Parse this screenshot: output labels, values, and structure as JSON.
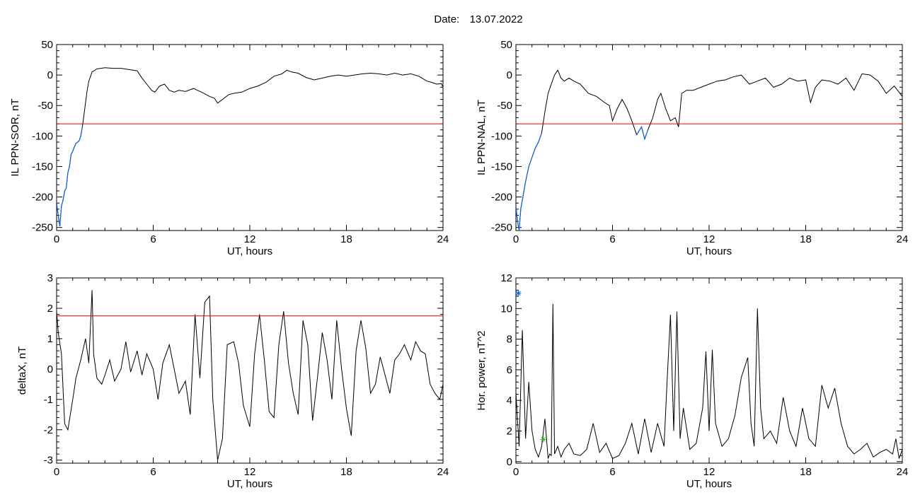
{
  "header": {
    "date_label": "Date:",
    "date_value": "13.07.2022"
  },
  "chart_data": [
    {
      "type": "line",
      "ylabel": "IL PPN-SOR, nT",
      "xlabel": "UT, hours",
      "xlim": [
        0,
        24
      ],
      "ylim": [
        -255,
        50
      ],
      "xticks": [
        0,
        6,
        12,
        18,
        24
      ],
      "yticks": [
        50,
        0,
        -50,
        -100,
        -150,
        -200,
        -250
      ],
      "threshold": {
        "value": -80,
        "color": "#e00000"
      },
      "below_color": "#1060e0",
      "series": [
        {
          "x": [
            0,
            0.1,
            0.2,
            0.3,
            0.4,
            0.5,
            0.6,
            0.7,
            0.8,
            0.9,
            1.0,
            1.1,
            1.2,
            1.3,
            1.4,
            1.5,
            1.6,
            1.7,
            1.8,
            1.9,
            2.0,
            2.2,
            2.5,
            3.0,
            3.5,
            4.0,
            4.5,
            5.0,
            5.3,
            5.6,
            5.9,
            6.1,
            6.4,
            6.7,
            7.0,
            7.3,
            7.6,
            8.0,
            8.5,
            9.0,
            9.5,
            9.8,
            10.0,
            10.3,
            10.7,
            11.0,
            11.5,
            12.0,
            12.5,
            13.0,
            13.5,
            14.0,
            14.3,
            14.6,
            15.0,
            15.5,
            16.0,
            16.5,
            17.0,
            17.5,
            18.0,
            18.5,
            19.0,
            19.5,
            20.0,
            20.5,
            21.0,
            21.5,
            22.0,
            22.5,
            23.0,
            23.3,
            23.6,
            23.9,
            24.0
          ],
          "y": [
            -210,
            -230,
            -248,
            -215,
            -205,
            -190,
            -185,
            -160,
            -150,
            -130,
            -125,
            -118,
            -112,
            -110,
            -108,
            -100,
            -85,
            -65,
            -45,
            -25,
            -10,
            5,
            10,
            12,
            11,
            11,
            9,
            7,
            -5,
            -15,
            -25,
            -28,
            -18,
            -15,
            -25,
            -28,
            -25,
            -27,
            -22,
            -28,
            -35,
            -38,
            -46,
            -40,
            -32,
            -30,
            -28,
            -22,
            -18,
            -12,
            -2,
            2,
            8,
            5,
            3,
            -4,
            -8,
            -5,
            -2,
            0,
            -2,
            0,
            2,
            3,
            2,
            0,
            3,
            0,
            2,
            -2,
            -10,
            -12,
            -15,
            -14,
            -20
          ]
        }
      ]
    },
    {
      "type": "line",
      "ylabel": "IL PPN-NAL, nT",
      "xlabel": "UT, hours",
      "xlim": [
        0,
        24
      ],
      "ylim": [
        -255,
        50
      ],
      "xticks": [
        0,
        6,
        12,
        18,
        24
      ],
      "yticks": [
        50,
        0,
        -50,
        -100,
        -150,
        -200,
        -250
      ],
      "threshold": {
        "value": -80,
        "color": "#e00000"
      },
      "below_color": "#1060e0",
      "series": [
        {
          "x": [
            0,
            0.1,
            0.2,
            0.3,
            0.4,
            0.5,
            0.6,
            0.8,
            1.0,
            1.2,
            1.4,
            1.6,
            1.8,
            2.0,
            2.2,
            2.4,
            2.6,
            2.8,
            3.0,
            3.3,
            3.6,
            4.0,
            4.5,
            5.0,
            5.5,
            5.8,
            6.0,
            6.3,
            6.6,
            6.9,
            7.2,
            7.5,
            7.8,
            8.0,
            8.2,
            8.5,
            8.8,
            9.0,
            9.3,
            9.6,
            9.9,
            10.1,
            10.3,
            10.6,
            11.0,
            11.5,
            12.0,
            12.5,
            13.0,
            13.5,
            14.0,
            14.5,
            15.0,
            15.5,
            16.0,
            16.5,
            17.0,
            17.5,
            18.0,
            18.3,
            18.6,
            19.0,
            19.5,
            20.0,
            20.5,
            21.0,
            21.5,
            22.0,
            22.5,
            23.0,
            23.5,
            24.0
          ],
          "y": [
            -215,
            -240,
            -255,
            -220,
            -205,
            -190,
            -175,
            -150,
            -135,
            -120,
            -110,
            -95,
            -60,
            -30,
            -15,
            0,
            8,
            -5,
            -10,
            -5,
            -10,
            -15,
            -30,
            -35,
            -45,
            -50,
            -75,
            -55,
            -40,
            -55,
            -75,
            -98,
            -85,
            -105,
            -90,
            -70,
            -40,
            -30,
            -55,
            -75,
            -70,
            -85,
            -30,
            -25,
            -25,
            -20,
            -15,
            -10,
            -8,
            -3,
            0,
            -15,
            -10,
            -5,
            -20,
            -15,
            -5,
            -10,
            -8,
            -45,
            -20,
            -8,
            -10,
            -15,
            -5,
            -25,
            2,
            0,
            -10,
            -30,
            -18,
            -35
          ]
        }
      ]
    },
    {
      "type": "line",
      "ylabel": "deltaX, nT",
      "xlabel": "UT, hours",
      "xlim": [
        0,
        24
      ],
      "ylim": [
        -3.1,
        3
      ],
      "xticks": [
        0,
        6,
        12,
        18,
        24
      ],
      "yticks": [
        3,
        2,
        1,
        0,
        -1,
        -2,
        -3
      ],
      "threshold": {
        "value": 1.75,
        "color": "#e00000"
      },
      "series": [
        {
          "x": [
            0,
            0.1,
            0.3,
            0.5,
            0.7,
            1.0,
            1.2,
            1.5,
            1.8,
            2.0,
            2.2,
            2.3,
            2.5,
            2.8,
            3.0,
            3.3,
            3.6,
            4.0,
            4.3,
            4.6,
            5.0,
            5.3,
            5.6,
            6.0,
            6.3,
            6.6,
            7.0,
            7.3,
            7.6,
            8.0,
            8.3,
            8.6,
            8.9,
            9.2,
            9.5,
            9.7,
            10.0,
            10.3,
            10.6,
            11.0,
            11.3,
            11.6,
            12.0,
            12.3,
            12.6,
            12.9,
            13.2,
            13.5,
            13.8,
            14.1,
            14.4,
            14.7,
            15.0,
            15.3,
            15.6,
            15.9,
            16.2,
            16.5,
            16.8,
            17.1,
            17.4,
            17.7,
            18.0,
            18.3,
            18.6,
            18.9,
            19.2,
            19.5,
            19.8,
            20.1,
            20.4,
            20.7,
            21.0,
            21.3,
            21.6,
            22.0,
            22.3,
            22.6,
            22.9,
            23.2,
            23.5,
            23.8,
            24.0
          ],
          "y": [
            1.9,
            1.2,
            0.5,
            -1.8,
            -2.0,
            -1.0,
            -0.3,
            0.3,
            1.0,
            0.2,
            2.6,
            0.5,
            -0.3,
            -0.5,
            -0.2,
            0.3,
            -0.4,
            0.0,
            0.9,
            -0.1,
            0.6,
            -0.2,
            0.5,
            0.0,
            -1.0,
            0.2,
            0.8,
            0.0,
            -0.8,
            -0.4,
            -1.5,
            1.8,
            -0.3,
            2.2,
            2.4,
            -1.0,
            -3.0,
            -2.3,
            0.8,
            0.9,
            0.2,
            -1.2,
            -1.9,
            0.5,
            1.8,
            0.3,
            -1.4,
            -1.6,
            0.8,
            1.9,
            0.2,
            -0.8,
            -1.5,
            1.6,
            0.8,
            -1.7,
            -0.3,
            1.2,
            0.3,
            -1.0,
            1.6,
            0.0,
            -1.3,
            -2.2,
            0.6,
            1.6,
            0.7,
            -0.8,
            -0.5,
            0.4,
            -0.2,
            -0.8,
            0.3,
            0.5,
            0.8,
            0.3,
            0.9,
            0.6,
            0.5,
            -0.5,
            -0.8,
            -1.0,
            -0.5
          ]
        }
      ]
    },
    {
      "type": "line",
      "ylabel": "Hor. power, nT^2",
      "xlabel": "UT, hours",
      "xlim": [
        0,
        24
      ],
      "ylim": [
        -0.1,
        12
      ],
      "xticks": [
        0,
        6,
        12,
        18,
        24
      ],
      "yticks": [
        12,
        10,
        8,
        6,
        4,
        2,
        0
      ],
      "series": [
        {
          "x": [
            0,
            0.2,
            0.4,
            0.6,
            0.8,
            1.0,
            1.2,
            1.4,
            1.6,
            1.8,
            2.0,
            2.1,
            2.2,
            2.3,
            2.4,
            2.6,
            2.8,
            3.0,
            3.3,
            3.6,
            4.0,
            4.4,
            4.8,
            5.2,
            5.6,
            6.0,
            6.4,
            6.8,
            7.2,
            7.6,
            8.0,
            8.4,
            8.8,
            9.2,
            9.4,
            9.6,
            9.8,
            10.0,
            10.2,
            10.4,
            10.8,
            11.2,
            11.6,
            11.8,
            12.0,
            12.2,
            12.4,
            12.8,
            13.2,
            13.6,
            14.0,
            14.4,
            14.6,
            14.8,
            15.0,
            15.2,
            15.4,
            15.8,
            16.2,
            16.6,
            17.0,
            17.4,
            17.8,
            18.2,
            18.6,
            19.0,
            19.4,
            19.8,
            20.2,
            20.6,
            21.0,
            21.4,
            21.8,
            22.2,
            22.6,
            23.0,
            23.4,
            23.6,
            23.8,
            24.0
          ],
          "y": [
            4.5,
            1.0,
            8.6,
            1.5,
            5.2,
            2.0,
            0.8,
            0.3,
            1.0,
            2.8,
            0.2,
            0.5,
            0.4,
            10.3,
            0.5,
            1.0,
            0.3,
            0.8,
            1.2,
            0.5,
            0.4,
            0.8,
            2.5,
            0.6,
            1.2,
            0.2,
            0.4,
            1.2,
            2.5,
            0.5,
            2.8,
            0.6,
            2.5,
            1.0,
            5.5,
            9.6,
            2.0,
            9.8,
            1.5,
            3.5,
            0.8,
            1.2,
            3.5,
            7.2,
            2.0,
            7.3,
            2.5,
            1.0,
            1.5,
            3.0,
            5.5,
            6.8,
            2.5,
            1.0,
            10.0,
            3.5,
            1.5,
            2.0,
            1.2,
            4.2,
            2.0,
            1.0,
            3.5,
            1.5,
            1.0,
            5.0,
            3.5,
            4.8,
            2.5,
            1.0,
            0.5,
            0.8,
            1.2,
            0.3,
            0.6,
            0.8,
            0.5,
            1.5,
            0.2,
            0.8
          ]
        }
      ],
      "annotations": [
        {
          "x": 0.15,
          "y": 11.0,
          "color": "#1060e0",
          "glyph": "star"
        },
        {
          "x": 1.7,
          "y": 1.45,
          "color": "#30b030",
          "glyph": "star"
        }
      ]
    }
  ]
}
